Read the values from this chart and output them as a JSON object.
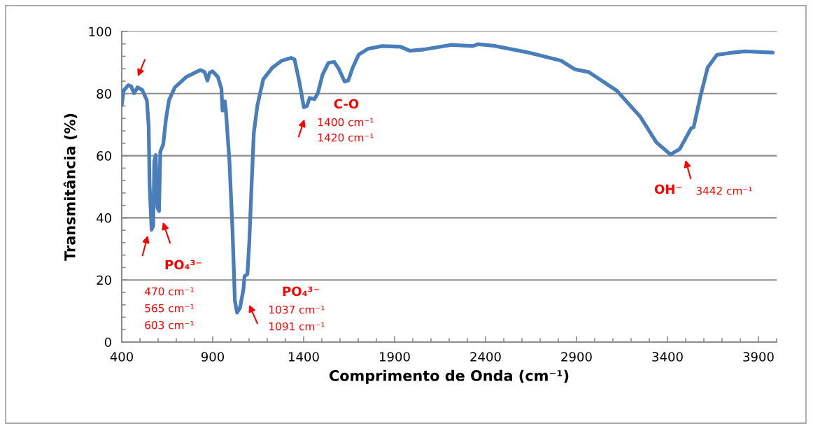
{
  "chart_data": {
    "type": "line",
    "xlabel": "Comprimento de Onda (cm⁻¹)",
    "ylabel": "Transmitância (%)",
    "xlim": [
      400,
      4000
    ],
    "xticks": [
      400,
      900,
      1400,
      1900,
      2400,
      2900,
      3400,
      3900
    ],
    "ylim": [
      0,
      100
    ],
    "yticks": [
      0,
      20,
      40,
      60,
      80,
      100
    ],
    "grid": "y",
    "legend": false,
    "marker": "none",
    "line_style": "solid",
    "series": [
      {
        "color": "#4a7ebb",
        "x": [
          400,
          410,
          436,
          451,
          468,
          487,
          512,
          538,
          548,
          553,
          564,
          573,
          579,
          587,
          596,
          605,
          612,
          628,
          643,
          660,
          692,
          756,
          832,
          855,
          871,
          883,
          899,
          928,
          948,
          954,
          967,
          973,
          992,
          1009,
          1022,
          1034,
          1050,
          1069,
          1075,
          1091,
          1101,
          1114,
          1126,
          1146,
          1178,
          1229,
          1280,
          1331,
          1350,
          1376,
          1401,
          1418,
          1433,
          1459,
          1478,
          1504,
          1536,
          1568,
          1593,
          1625,
          1645,
          1670,
          1702,
          1753,
          1830,
          1932,
          1983,
          2060,
          2213,
          2329,
          2357,
          2444,
          2636,
          2815,
          2892,
          2968,
          3122,
          3250,
          3339,
          3416,
          3467,
          3531,
          3544,
          3582,
          3621,
          3672,
          3761,
          3825,
          3979
        ],
        "values": [
          76.3,
          80.9,
          82.7,
          82.4,
          80.1,
          82.0,
          81.2,
          77.9,
          69.6,
          50.9,
          36.2,
          37.4,
          58.3,
          60.2,
          43.3,
          42.2,
          61.3,
          63.6,
          71.8,
          77.9,
          82.0,
          85.4,
          87.6,
          87.0,
          84.2,
          86.7,
          87.2,
          85.4,
          81.6,
          74.5,
          77.5,
          74.1,
          58.3,
          35.8,
          13.3,
          9.5,
          11.0,
          17.0,
          21.2,
          21.9,
          32.0,
          50.8,
          67.3,
          76.3,
          84.6,
          88.4,
          90.6,
          91.5,
          91.0,
          83.9,
          75.6,
          76.0,
          78.6,
          78.2,
          80.1,
          86.1,
          89.9,
          90.2,
          88.0,
          83.9,
          84.2,
          88.4,
          92.5,
          94.4,
          95.3,
          95.1,
          93.8,
          94.2,
          95.7,
          95.3,
          95.9,
          95.4,
          93.2,
          90.6,
          87.8,
          86.9,
          80.9,
          72.6,
          64.3,
          60.4,
          62.1,
          68.9,
          69.2,
          79.3,
          88.4,
          92.5,
          93.2,
          93.6,
          93.2
        ]
      }
    ],
    "annotations": [
      "PO₄³⁻",
      "470 cm⁻¹",
      "565 cm⁻¹",
      "603 cm⁻¹",
      "PO₄³⁻",
      "1037 cm⁻¹",
      "1091 cm⁻¹",
      "C-O",
      "1400 cm⁻¹",
      "1420 cm⁻¹",
      "OH⁻",
      "3442 cm⁻¹"
    ]
  }
}
